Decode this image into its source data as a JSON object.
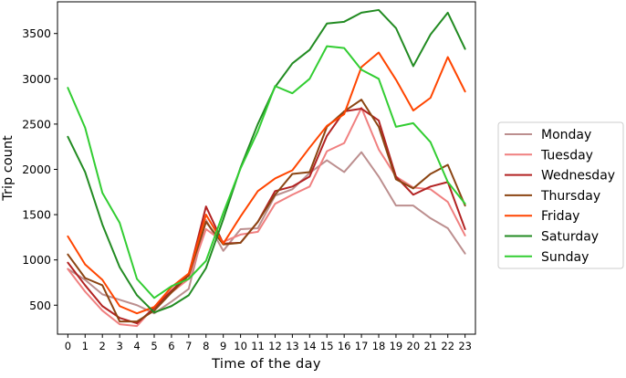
{
  "chart_data": {
    "type": "line",
    "title": "",
    "xlabel": "Time of the day",
    "ylabel": "Trip count",
    "x": [
      0,
      1,
      2,
      3,
      4,
      5,
      6,
      7,
      8,
      9,
      10,
      11,
      12,
      13,
      14,
      15,
      16,
      17,
      18,
      19,
      20,
      21,
      22,
      23
    ],
    "xlim": [
      -0.6,
      23.6
    ],
    "ylim": [
      180,
      3850
    ],
    "yticks": [
      500,
      1000,
      1500,
      2000,
      2500,
      3000,
      3500
    ],
    "grid": false,
    "legend_position": "right",
    "series": [
      {
        "name": "Monday",
        "color": "#bc8f8f",
        "values": [
          900,
          780,
          620,
          560,
          500,
          410,
          540,
          680,
          1440,
          1100,
          1340,
          1350,
          1710,
          1780,
          1960,
          2100,
          1970,
          2190,
          1920,
          1600,
          1600,
          1460,
          1350,
          1070
        ]
      },
      {
        "name": "Tuesday",
        "color": "#f08080",
        "values": [
          900,
          650,
          440,
          290,
          270,
          480,
          640,
          790,
          1340,
          1200,
          1280,
          1310,
          1620,
          1720,
          1810,
          2200,
          2290,
          2680,
          2220,
          1920,
          1800,
          1780,
          1640,
          1270
        ]
      },
      {
        "name": "Wednesday",
        "color": "#b22222",
        "values": [
          970,
          720,
          490,
          360,
          300,
          470,
          660,
          840,
          1590,
          1180,
          1190,
          1420,
          1760,
          1810,
          1920,
          2370,
          2640,
          2670,
          2540,
          1920,
          1720,
          1810,
          1860,
          1340
        ]
      },
      {
        "name": "Thursday",
        "color": "#8b4513",
        "values": [
          1060,
          800,
          720,
          320,
          320,
          440,
          640,
          830,
          1420,
          1170,
          1190,
          1420,
          1720,
          1950,
          1970,
          2470,
          2640,
          2770,
          2470,
          1890,
          1790,
          1950,
          2050,
          1600
        ]
      },
      {
        "name": "Friday",
        "color": "#ff4500",
        "values": [
          1260,
          950,
          780,
          490,
          410,
          480,
          700,
          850,
          1500,
          1180,
          1480,
          1760,
          1900,
          1990,
          2240,
          2480,
          2610,
          3130,
          3290,
          2990,
          2650,
          2790,
          3240,
          2860
        ]
      },
      {
        "name": "Saturday",
        "color": "#228b22",
        "values": [
          2360,
          1970,
          1390,
          920,
          610,
          420,
          490,
          610,
          910,
          1450,
          2020,
          2500,
          2910,
          3170,
          3320,
          3610,
          3630,
          3730,
          3760,
          3560,
          3140,
          3490,
          3730,
          3330
        ]
      },
      {
        "name": "Sunday",
        "color": "#32cd32",
        "values": [
          2900,
          2460,
          1740,
          1410,
          790,
          580,
          710,
          790,
          990,
          1520,
          2010,
          2420,
          2920,
          2840,
          3000,
          3360,
          3340,
          3100,
          3000,
          2470,
          2510,
          2300,
          1860,
          1620
        ]
      }
    ]
  }
}
